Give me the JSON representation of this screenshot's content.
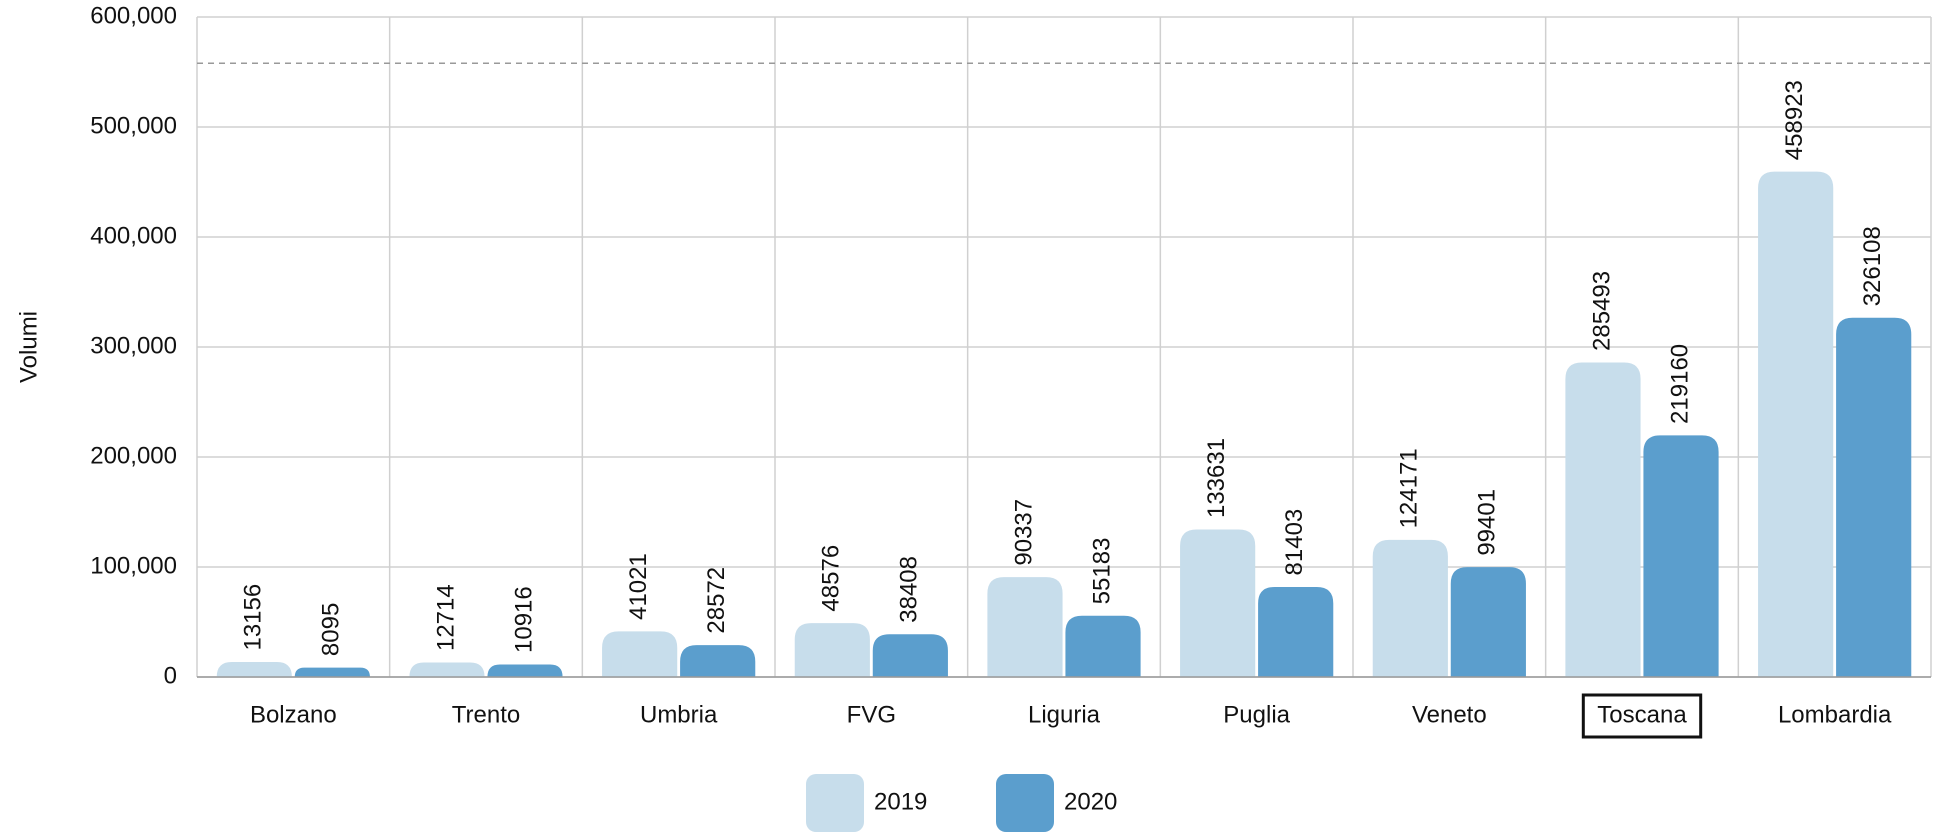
{
  "chart_data": {
    "type": "bar",
    "y_label": "Volumi",
    "categories": [
      "Bolzano",
      "Trento",
      "Umbria",
      "FVG",
      "Liguria",
      "Puglia",
      "Veneto",
      "Toscana",
      "Lombardia"
    ],
    "series": [
      {
        "name": "2019",
        "color": "#c7ddeb",
        "values": [
          13156,
          12714,
          41021,
          48576,
          90337,
          133631,
          124171,
          285493,
          458923
        ]
      },
      {
        "name": "2020",
        "color": "#5b9ecd",
        "values": [
          8095,
          10916,
          28572,
          38408,
          55183,
          81403,
          99401,
          219160,
          326108
        ]
      }
    ],
    "ylim": [
      0,
      600000
    ],
    "yticks": [
      0,
      {
        "value": 100000,
        "label": "100,000"
      },
      {
        "value": 200000,
        "label": "200,000"
      },
      {
        "value": 300000,
        "label": "300,000"
      },
      {
        "value": 400000,
        "label": "400,000"
      },
      {
        "value": 500000,
        "label": "500,000"
      },
      {
        "value": 600000,
        "label": "600,000"
      }
    ],
    "reference_line": 558000,
    "highlight_index": 7,
    "grid": true,
    "legend": "bottom"
  }
}
